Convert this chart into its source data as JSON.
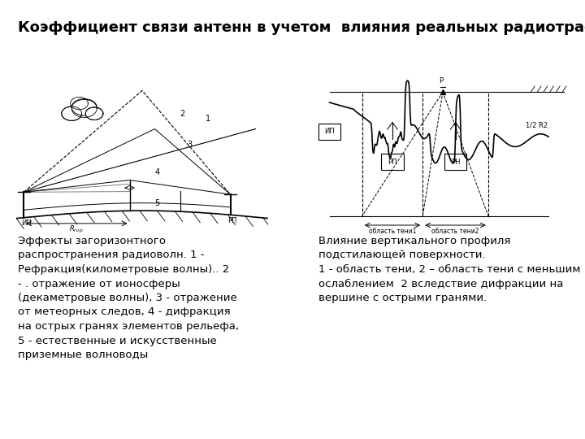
{
  "title": "Коэффициент связи антенн в учетом  влияния реальных радиотрасс.",
  "title_fontsize": 13,
  "left_caption": "Эффекты загоризонтного\nраспространения радиоволн. 1 -\nРефракция(километровые волны).. 2\n- . отражение от ионосферы\n(декаметровые волны), 3 - отражение\nот метеорных следов, 4 - дифракция\nна острых гранях элементов рельефа,\n5 - естественные и искусственные\nприземные волноводы",
  "right_caption": "Влияние вертикального профиля\nподстилающей поверхности.\n1 - область тени, 2 – область тени с меньшим\nослаблением  2 вследствие дифракции на\nвершине с острыми гранями.",
  "text_fontsize": 9.5,
  "bg_color": "#ffffff"
}
